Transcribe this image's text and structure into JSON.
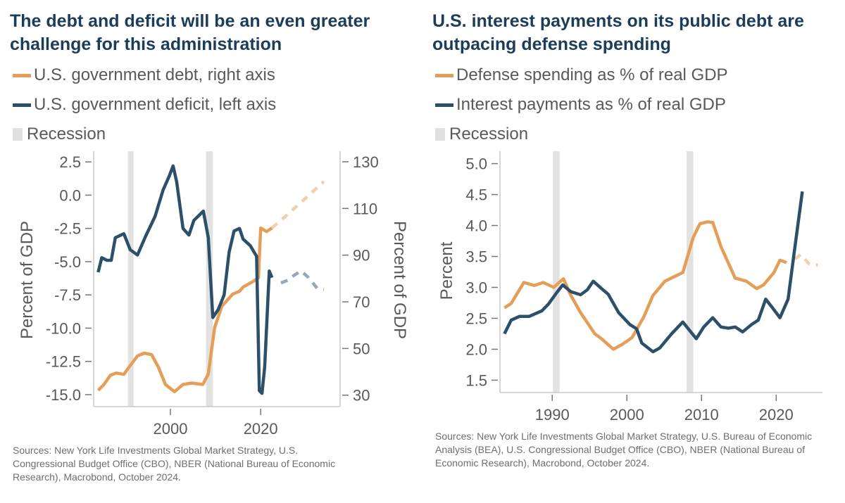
{
  "colors": {
    "orange": "#e59e58",
    "blue": "#2c5069",
    "orange_forecast": "#f2cfae",
    "blue_forecast": "#9aa7bb",
    "recession": "#e2e2e2",
    "title": "#1c3d5a"
  },
  "left": {
    "title": "The debt and deficit will be an even greater challenge for this administration",
    "legend": [
      {
        "label": "U.S. government debt, right axis",
        "type": "line",
        "color": "#e59e58"
      },
      {
        "label": "U.S. government deficit, left axis",
        "type": "line",
        "color": "#2c5069"
      },
      {
        "label": "Recession",
        "type": "box",
        "color": "#e2e2e2"
      }
    ],
    "sources": "Sources: New York Life Investments Global Market Strategy, U.S. Congressional Budget Office (CBO), NBER (National Bureau of Economic Research), Macrobond, October 2024."
  },
  "right": {
    "title": "U.S. interest payments on its public debt are outpacing defense spending",
    "legend": [
      {
        "label": "Defense spending as % of real GDP",
        "type": "line",
        "color": "#e59e58"
      },
      {
        "label": "Interest payments as % of real GDP",
        "type": "line",
        "color": "#2c5069"
      },
      {
        "label": "Recession",
        "type": "box",
        "color": "#e2e2e2"
      }
    ],
    "sources": "Sources: New York Life Investments Global Market Strategy, U.S. Bureau of Economic Analysis (BEA), U.S. Congressional Budget Office (CBO), NBER (National Bureau of Economic Research), Macrobond, October 2024."
  },
  "chart_data": [
    {
      "type": "line",
      "title": "The debt and deficit will be an even greater challenge for this administration",
      "xlabel": "",
      "ylabel": "Percent of GDP",
      "ylabel_right": "Percent of GDP",
      "xlim": [
        1983,
        2037.6
      ],
      "ylim": [
        -15.9,
        3.3
      ],
      "ylim_right": [
        25.1,
        134.5
      ],
      "xticks": [
        2000,
        2020
      ],
      "xtick_labels": [
        "2000",
        "2020"
      ],
      "yticks": [
        2.5,
        0.0,
        -2.5,
        -5.0,
        -7.5,
        -10.0,
        -12.5,
        -15.0
      ],
      "ytick_labels": [
        "2.5",
        "0.0",
        "-2.5",
        "-5.0",
        "-7.5",
        "-10.0",
        "-12.5",
        "-15.0"
      ],
      "yticks_right": [
        130,
        110,
        90,
        70,
        50,
        30
      ],
      "ytick_labels_right": [
        "130",
        "110",
        "90",
        "70",
        "50",
        "30"
      ],
      "grid": false,
      "legend_position": "top-left",
      "recessions": [
        [
          1990.6,
          1991.2
        ],
        [
          2007.9,
          2009.4
        ]
      ],
      "series": [
        {
          "name": "U.S. government debt, right axis",
          "axis": "right",
          "color": "#e59e58",
          "x": [
            1984,
            1985.3,
            1986.7,
            1988,
            1989.7,
            1990.9,
            1992.7,
            1994.2,
            1995.8,
            1997.3,
            1998.9,
            2000.9,
            2002.8,
            2004.7,
            2007.2,
            2008.4,
            2009.8,
            2011.4,
            2013.8,
            2015.3,
            2016.1,
            2018.4,
            2019.5,
            2020,
            2021.3,
            2022.5
          ],
          "values": [
            32.1,
            34.6,
            38.5,
            39.5,
            38.9,
            42.2,
            46.8,
            48.0,
            47.4,
            42.2,
            34.6,
            31.5,
            34.6,
            35.2,
            34.6,
            39.1,
            59.0,
            68.1,
            73.3,
            74.5,
            76.3,
            78.8,
            80.3,
            101.6,
            100.1,
            101.6
          ]
        },
        {
          "name": "U.S. government debt forecast",
          "axis": "right",
          "style": "dashed",
          "color": "#f2cfae",
          "x": [
            2022.5,
            2026,
            2030,
            2034
          ],
          "values": [
            101.6,
            107.5,
            114.5,
            121.5
          ]
        },
        {
          "name": "U.S. government deficit, left axis",
          "axis": "left",
          "color": "#2c5069",
          "x": [
            1984,
            1984.8,
            1985.9,
            1986.9,
            1987.8,
            1989.7,
            1991.1,
            1992.7,
            1994.5,
            1996.6,
            1998.4,
            1999.7,
            2000.6,
            2001.4,
            2002.8,
            2004.1,
            2005.2,
            2007.3,
            2008.4,
            2009.4,
            2010.6,
            2011.9,
            2013,
            2014.1,
            2015.3,
            2016.1,
            2017.7,
            2019.1,
            2019.7,
            2020.3,
            2020.9,
            2021.9,
            2022.5
          ],
          "values": [
            -5.8,
            -4.7,
            -4.9,
            -4.9,
            -3.2,
            -2.9,
            -4.1,
            -4.5,
            -3.1,
            -1.6,
            0.4,
            1.4,
            2.2,
            1.0,
            -2.5,
            -3.0,
            -1.9,
            -1.2,
            -3.2,
            -9.2,
            -8.6,
            -7.5,
            -4.3,
            -2.7,
            -2.5,
            -3.3,
            -3.8,
            -4.6,
            -14.7,
            -14.9,
            -12.9,
            -5.7,
            -6.2
          ]
        },
        {
          "name": "U.S. government deficit forecast",
          "axis": "left",
          "style": "dashed",
          "color": "#9aa7bb",
          "x": [
            2024.5,
            2026,
            2027.5,
            2029,
            2030.6,
            2032.5,
            2034
          ],
          "values": [
            -6.6,
            -6.4,
            -6.0,
            -5.7,
            -6.2,
            -7.0,
            -7.1
          ]
        }
      ]
    },
    {
      "type": "line",
      "title": "U.S. interest payments on its public debt are outpacing defense spending",
      "xlabel": "",
      "ylabel": "Percent",
      "xlim": [
        1983,
        2026.2
      ],
      "ylim": [
        1.3,
        5.2
      ],
      "xticks": [
        1990,
        2000,
        2010,
        2020
      ],
      "xtick_labels": [
        "1990",
        "2000",
        "2010",
        "2020"
      ],
      "yticks": [
        5.0,
        4.5,
        4.0,
        3.5,
        3.0,
        2.5,
        2.0,
        1.5
      ],
      "ytick_labels": [
        "5.0",
        "4.5",
        "4.0",
        "3.5",
        "3.0",
        "2.5",
        "2.0",
        "1.5"
      ],
      "grid": false,
      "legend_position": "top-left",
      "recessions": [
        [
          1990.1,
          1991.0
        ],
        [
          2008.0,
          2008.9
        ]
      ],
      "series": [
        {
          "name": "Defense spending as % of real GDP",
          "color": "#e59e58",
          "x": [
            1983.6,
            1984.5,
            1986.2,
            1987.6,
            1988.8,
            1990.2,
            1991.5,
            1992.5,
            1993.8,
            1995.7,
            1996.6,
            1998.2,
            1999.4,
            2000.7,
            2002.3,
            2003.5,
            2005.1,
            2007.5,
            2008.9,
            2009.8,
            2010.8,
            2011.5,
            2012.6,
            2014.5,
            2016,
            2017.4,
            2018.3,
            2019.7,
            2020.5,
            2021.4
          ],
          "values": [
            2.67,
            2.74,
            3.08,
            3.03,
            3.08,
            3.0,
            3.14,
            2.87,
            2.59,
            2.25,
            2.17,
            2.0,
            2.08,
            2.19,
            2.53,
            2.87,
            3.1,
            3.24,
            3.81,
            4.03,
            4.06,
            4.05,
            3.66,
            3.15,
            3.1,
            2.98,
            3.04,
            3.24,
            3.44,
            3.4
          ]
        },
        {
          "name": "Defense spending forecast",
          "style": "dashed",
          "color": "#f2cfae",
          "x": [
            2022.5,
            2023.3,
            2024.4,
            2025.6
          ],
          "values": [
            3.46,
            3.53,
            3.38,
            3.36
          ]
        },
        {
          "name": "Interest payments as % of real GDP",
          "color": "#2c5069",
          "x": [
            1983.6,
            1984.5,
            1985.6,
            1986.9,
            1988.6,
            1989.5,
            1990.7,
            1991.4,
            1992.5,
            1993.8,
            1994.7,
            1995.5,
            1996.6,
            1997.5,
            1998.9,
            2000.4,
            2001.3,
            2002,
            2003.5,
            2004.4,
            2006,
            2007.5,
            2009.3,
            2010.3,
            2011.5,
            2012.6,
            2013.6,
            2014.5,
            2015.5,
            2016.7,
            2017.6,
            2018.6,
            2019.5,
            2020.5,
            2021.6,
            2022.4,
            2023.5
          ],
          "values": [
            2.25,
            2.47,
            2.53,
            2.53,
            2.62,
            2.73,
            2.93,
            3.04,
            2.93,
            2.88,
            2.96,
            3.1,
            2.98,
            2.89,
            2.59,
            2.4,
            2.33,
            2.1,
            1.96,
            2.02,
            2.25,
            2.44,
            2.17,
            2.36,
            2.51,
            2.36,
            2.34,
            2.36,
            2.28,
            2.4,
            2.47,
            2.81,
            2.67,
            2.51,
            2.81,
            3.55,
            4.55
          ]
        }
      ]
    }
  ]
}
